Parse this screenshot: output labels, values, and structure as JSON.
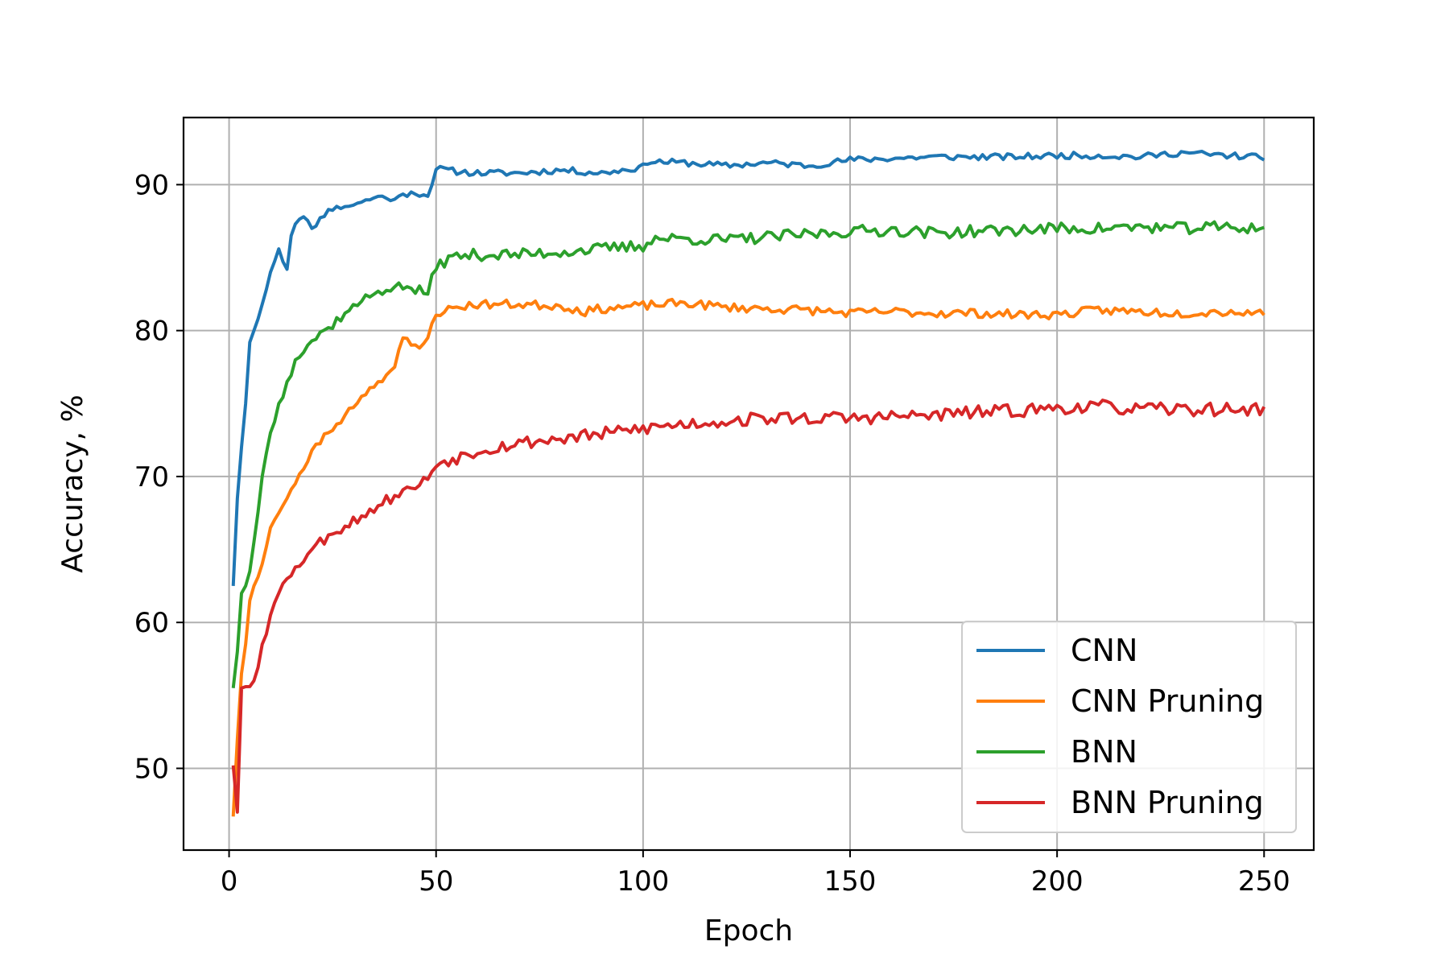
{
  "chart_data": {
    "type": "line",
    "title": "",
    "xlabel": "Epoch",
    "ylabel": "Accuracy, %",
    "xlim": [
      -11,
      262
    ],
    "ylim": [
      44.4,
      94.6
    ],
    "xticks": [
      0,
      50,
      100,
      150,
      200,
      250
    ],
    "yticks": [
      50,
      60,
      70,
      80,
      90
    ],
    "grid": true,
    "legend_position": "lower-right",
    "series": [
      {
        "name": "CNN",
        "color": "#1f77b4",
        "anchors": [
          [
            1,
            62.5
          ],
          [
            2,
            68.5
          ],
          [
            3,
            72
          ],
          [
            4,
            75
          ],
          [
            5,
            79.2
          ],
          [
            6,
            80
          ],
          [
            8,
            81.8
          ],
          [
            10,
            84
          ],
          [
            12,
            85.6
          ],
          [
            14,
            84.2
          ],
          [
            15,
            86.5
          ],
          [
            16,
            87.3
          ],
          [
            18,
            87.8
          ],
          [
            20,
            87
          ],
          [
            24,
            88.3
          ],
          [
            28,
            88.5
          ],
          [
            32,
            88.8
          ],
          [
            36,
            89.2
          ],
          [
            40,
            89
          ],
          [
            44,
            89.5
          ],
          [
            48,
            89.2
          ],
          [
            50,
            91.1
          ],
          [
            55,
            90.9
          ],
          [
            60,
            90.8
          ],
          [
            70,
            90.8
          ],
          [
            80,
            91
          ],
          [
            90,
            90.8
          ],
          [
            100,
            91.2
          ],
          [
            101,
            91.6
          ],
          [
            110,
            91.5
          ],
          [
            120,
            91.3
          ],
          [
            130,
            91.5
          ],
          [
            140,
            91.3
          ],
          [
            150,
            91.7
          ],
          [
            160,
            91.8
          ],
          [
            170,
            91.9
          ],
          [
            180,
            91.9
          ],
          [
            190,
            91.9
          ],
          [
            200,
            92
          ],
          [
            210,
            92
          ],
          [
            220,
            91.9
          ],
          [
            230,
            92.2
          ],
          [
            240,
            92
          ],
          [
            250,
            91.9
          ]
        ],
        "noise": 0.22,
        "seed": 11
      },
      {
        "name": "CNN Pruning",
        "color": "#ff7f0e",
        "anchors": [
          [
            1,
            46.7
          ],
          [
            2,
            52
          ],
          [
            3,
            56.5
          ],
          [
            4,
            58.5
          ],
          [
            5,
            61.5
          ],
          [
            6,
            62.5
          ],
          [
            8,
            64
          ],
          [
            10,
            66.5
          ],
          [
            12,
            67.5
          ],
          [
            14,
            68.5
          ],
          [
            16,
            69.5
          ],
          [
            18,
            70.5
          ],
          [
            20,
            71.8
          ],
          [
            24,
            73
          ],
          [
            28,
            74.2
          ],
          [
            32,
            75.5
          ],
          [
            36,
            76.5
          ],
          [
            40,
            77.5
          ],
          [
            42,
            79.5
          ],
          [
            44,
            79
          ],
          [
            46,
            78.8
          ],
          [
            48,
            79.5
          ],
          [
            50,
            81.2
          ],
          [
            55,
            81.6
          ],
          [
            60,
            81.8
          ],
          [
            70,
            81.8
          ],
          [
            80,
            81.7
          ],
          [
            86,
            81.3
          ],
          [
            90,
            81.5
          ],
          [
            100,
            81.7
          ],
          [
            110,
            81.9
          ],
          [
            120,
            81.6
          ],
          [
            130,
            81.5
          ],
          [
            140,
            81.4
          ],
          [
            150,
            81.2
          ],
          [
            160,
            81.3
          ],
          [
            170,
            81.2
          ],
          [
            180,
            81.2
          ],
          [
            190,
            81.1
          ],
          [
            200,
            81.1
          ],
          [
            210,
            81.4
          ],
          [
            220,
            81.3
          ],
          [
            230,
            81.2
          ],
          [
            240,
            81.3
          ],
          [
            250,
            81.2
          ]
        ],
        "noise": 0.3,
        "seed": 23
      },
      {
        "name": "BNN",
        "color": "#2ca02c",
        "anchors": [
          [
            1,
            55.5
          ],
          [
            2,
            58
          ],
          [
            3,
            62
          ],
          [
            4,
            62.5
          ],
          [
            5,
            63.5
          ],
          [
            6,
            65.5
          ],
          [
            8,
            70
          ],
          [
            10,
            73
          ],
          [
            12,
            75
          ],
          [
            14,
            76.5
          ],
          [
            16,
            78
          ],
          [
            20,
            79.3
          ],
          [
            24,
            80.2
          ],
          [
            28,
            81.2
          ],
          [
            32,
            82
          ],
          [
            36,
            82.7
          ],
          [
            40,
            83
          ],
          [
            44,
            82.9
          ],
          [
            48,
            82.5
          ],
          [
            50,
            84.5
          ],
          [
            55,
            85.1
          ],
          [
            60,
            85.2
          ],
          [
            70,
            85.2
          ],
          [
            80,
            85.4
          ],
          [
            90,
            85.6
          ],
          [
            100,
            85.8
          ],
          [
            102,
            86.3
          ],
          [
            110,
            86.3
          ],
          [
            120,
            86.2
          ],
          [
            130,
            86.4
          ],
          [
            140,
            86.6
          ],
          [
            150,
            86.8
          ],
          [
            160,
            86.9
          ],
          [
            170,
            86.7
          ],
          [
            180,
            86.8
          ],
          [
            190,
            86.9
          ],
          [
            200,
            87
          ],
          [
            210,
            87
          ],
          [
            220,
            87.1
          ],
          [
            230,
            87
          ],
          [
            240,
            87.1
          ],
          [
            250,
            87
          ]
        ],
        "noise": 0.4,
        "seed": 37
      },
      {
        "name": "BNN Pruning",
        "color": "#d62728",
        "anchors": [
          [
            1,
            50.2
          ],
          [
            2,
            47
          ],
          [
            3,
            55.5
          ],
          [
            4,
            55.6
          ],
          [
            6,
            56
          ],
          [
            8,
            58.5
          ],
          [
            10,
            60.5
          ],
          [
            12,
            62
          ],
          [
            14,
            63
          ],
          [
            16,
            63.8
          ],
          [
            20,
            65
          ],
          [
            24,
            66
          ],
          [
            28,
            66.6
          ],
          [
            32,
            67.3
          ],
          [
            36,
            68
          ],
          [
            40,
            68.7
          ],
          [
            44,
            69.2
          ],
          [
            48,
            69.8
          ],
          [
            50,
            70.9
          ],
          [
            55,
            71.3
          ],
          [
            60,
            71.8
          ],
          [
            70,
            72.3
          ],
          [
            80,
            72.6
          ],
          [
            90,
            72.9
          ],
          [
            100,
            73.3
          ],
          [
            110,
            73.6
          ],
          [
            120,
            73.8
          ],
          [
            130,
            74
          ],
          [
            140,
            74
          ],
          [
            150,
            74
          ],
          [
            160,
            74.1
          ],
          [
            170,
            74.2
          ],
          [
            180,
            74.4
          ],
          [
            190,
            74.5
          ],
          [
            200,
            74.7
          ],
          [
            210,
            74.8
          ],
          [
            220,
            74.6
          ],
          [
            230,
            74.6
          ],
          [
            240,
            74.6
          ],
          [
            250,
            74.6
          ]
        ],
        "noise": 0.45,
        "seed": 53
      }
    ]
  }
}
